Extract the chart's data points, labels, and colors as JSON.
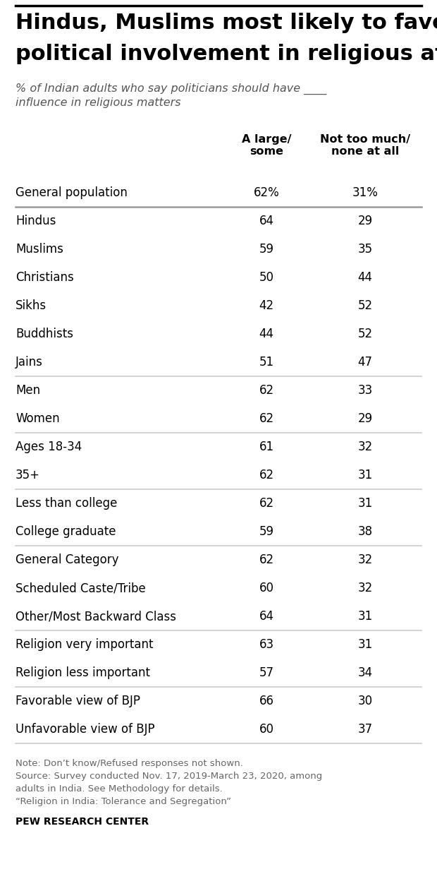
{
  "title_line1": "Hindus, Muslims most likely to favor",
  "title_line2": "political involvement in religious affairs",
  "subtitle": "% of Indian adults who say politicians should have ____\ninfluence in religious matters",
  "col1_header": "A large/\nsome",
  "col2_header": "Not too much/\nnone at all",
  "rows": [
    {
      "label": "General population",
      "val1": "62%",
      "val2": "31%"
    },
    {
      "label": "Hindus",
      "val1": "64",
      "val2": "29"
    },
    {
      "label": "Muslims",
      "val1": "59",
      "val2": "35"
    },
    {
      "label": "Christians",
      "val1": "50",
      "val2": "44"
    },
    {
      "label": "Sikhs",
      "val1": "42",
      "val2": "52"
    },
    {
      "label": "Buddhists",
      "val1": "44",
      "val2": "52"
    },
    {
      "label": "Jains",
      "val1": "51",
      "val2": "47"
    },
    {
      "label": "Men",
      "val1": "62",
      "val2": "33"
    },
    {
      "label": "Women",
      "val1": "62",
      "val2": "29"
    },
    {
      "label": "Ages 18-34",
      "val1": "61",
      "val2": "32"
    },
    {
      "label": "35+",
      "val1": "62",
      "val2": "31"
    },
    {
      "label": "Less than college",
      "val1": "62",
      "val2": "31"
    },
    {
      "label": "College graduate",
      "val1": "59",
      "val2": "38"
    },
    {
      "label": "General Category",
      "val1": "62",
      "val2": "32"
    },
    {
      "label": "Scheduled Caste/Tribe",
      "val1": "60",
      "val2": "32"
    },
    {
      "label": "Other/Most Backward Class",
      "val1": "64",
      "val2": "31"
    },
    {
      "label": "Religion very important",
      "val1": "63",
      "val2": "31"
    },
    {
      "label": "Religion less important",
      "val1": "57",
      "val2": "34"
    },
    {
      "label": "Favorable view of BJP",
      "val1": "66",
      "val2": "30"
    },
    {
      "label": "Unfavorable view of BJP",
      "val1": "60",
      "val2": "37"
    }
  ],
  "thick_divider_after": [
    0
  ],
  "thin_divider_after": [
    6,
    8,
    10,
    12,
    15,
    17,
    19
  ],
  "note_text": "Note: Don’t know/Refused responses not shown.\nSource: Survey conducted Nov. 17, 2019-March 23, 2020, among\nadults in India. See Methodology for details.\n“Religion in India: Tolerance and Segregation”",
  "source_bold": "PEW RESEARCH CENTER",
  "bg_color": "#ffffff",
  "title_color": "#000000",
  "subtitle_color": "#555555",
  "text_color": "#000000",
  "note_color": "#666666",
  "thick_divider_color": "#999999",
  "thin_divider_color": "#cccccc",
  "top_border_color": "#000000"
}
